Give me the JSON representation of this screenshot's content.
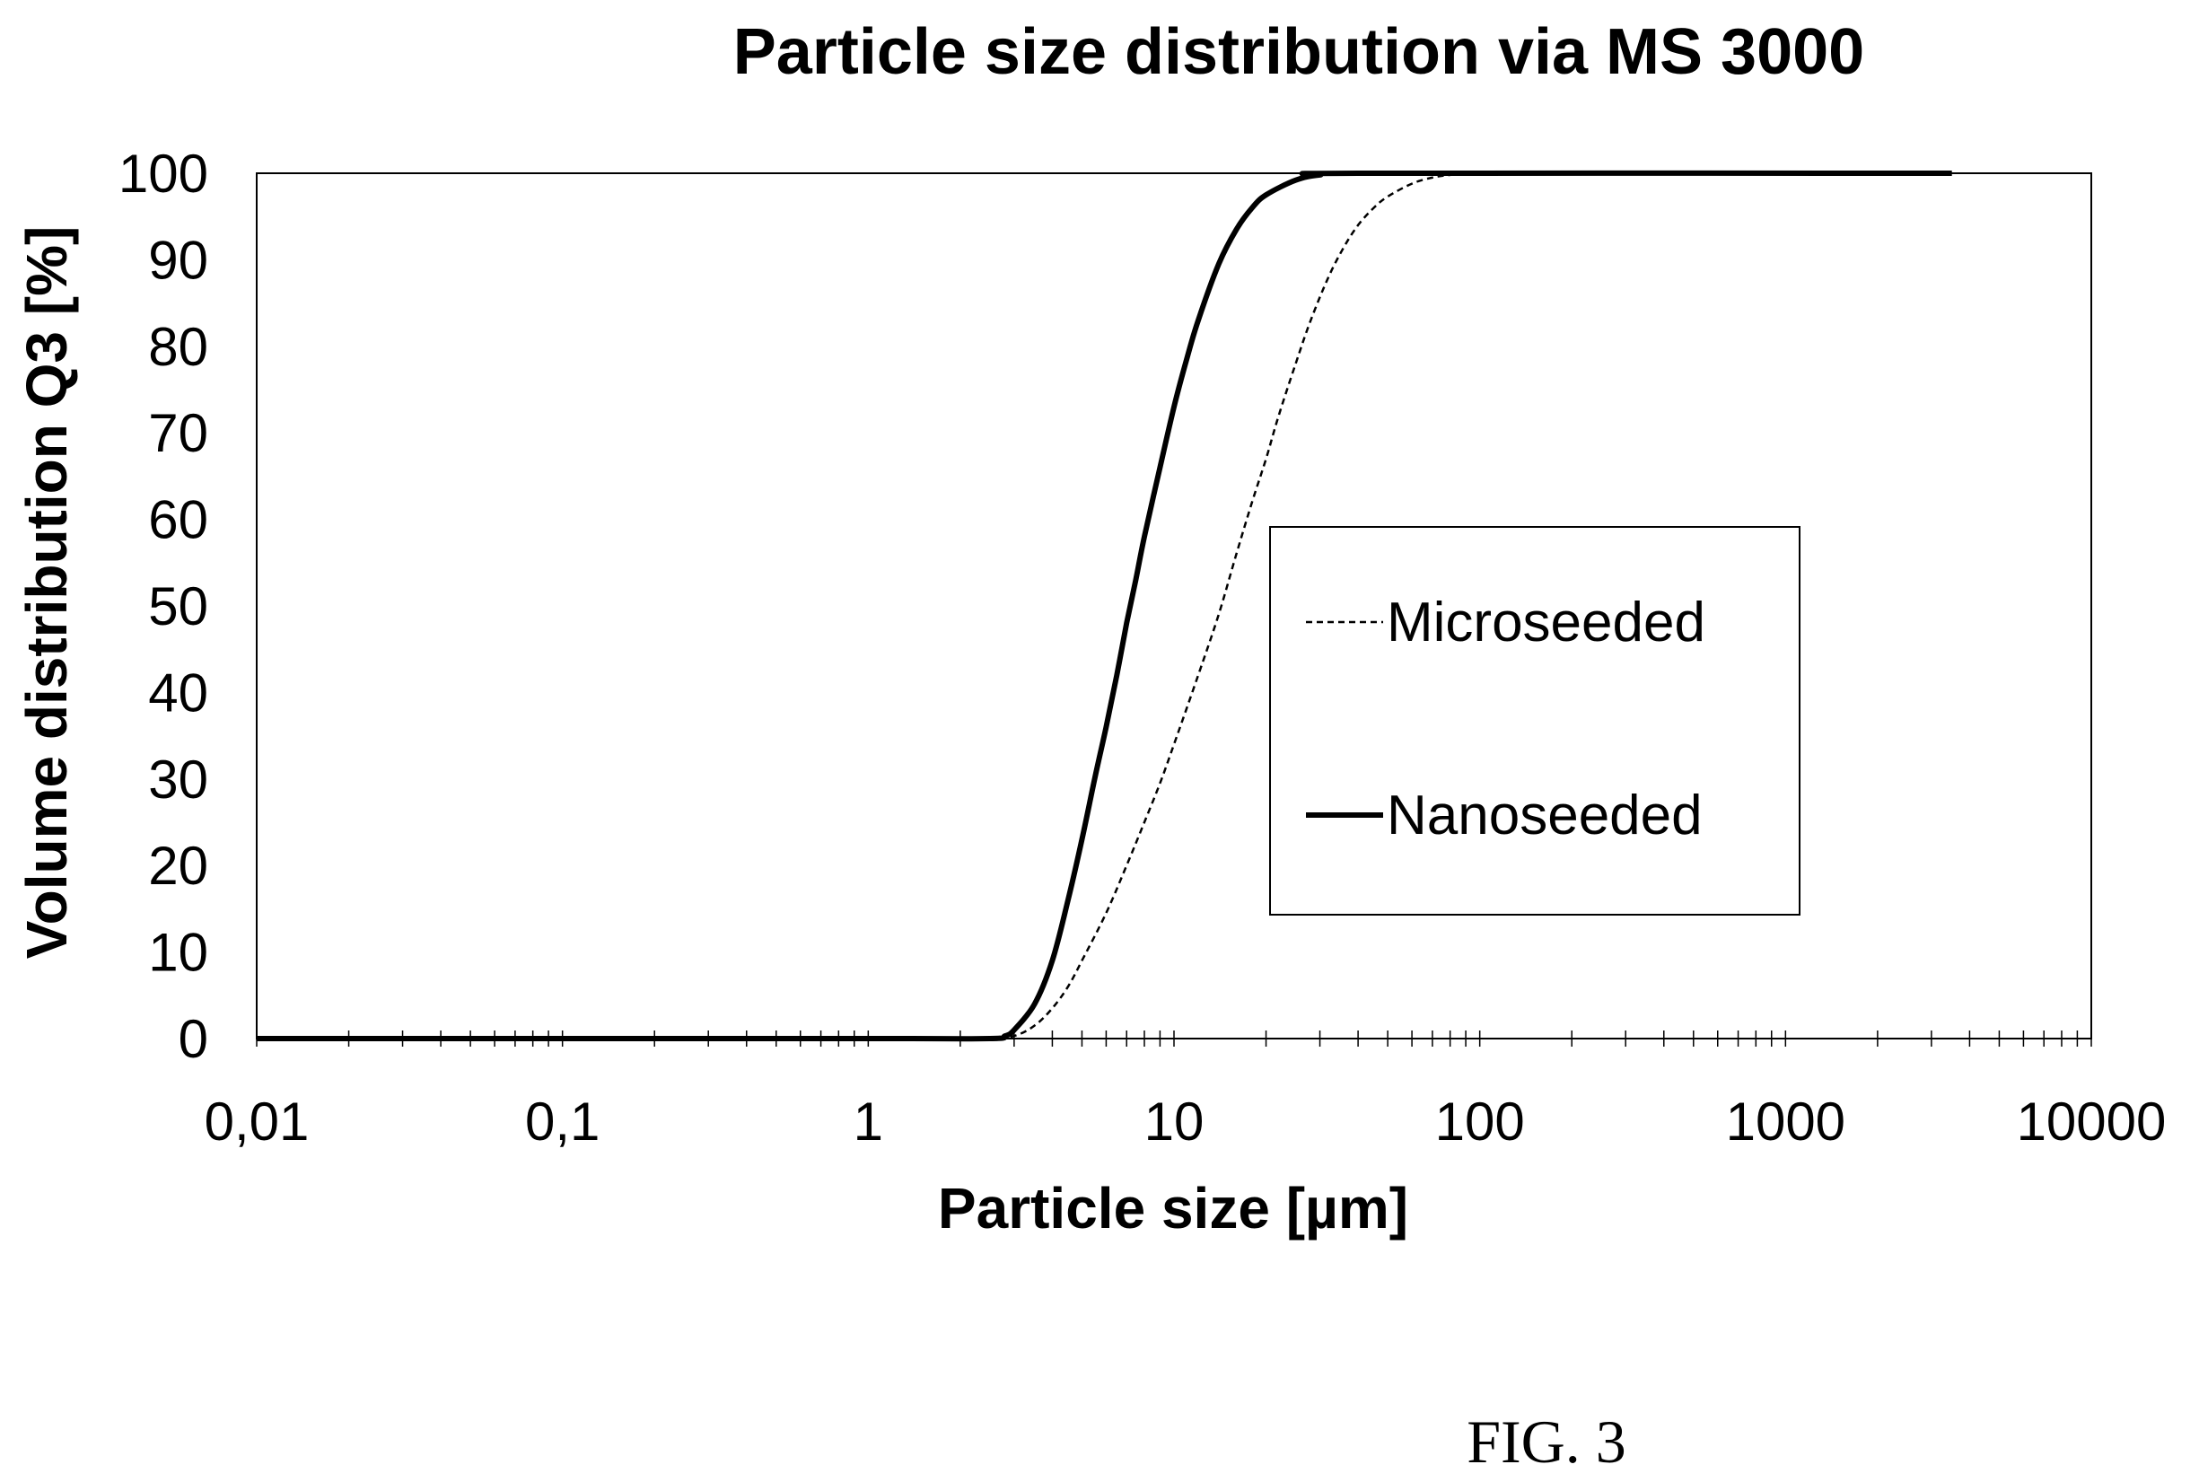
{
  "chart_data": {
    "type": "line",
    "title": "Particle size distribution via MS 3000",
    "xlabel": "Particle size [µm]",
    "ylabel": "Volume distribution Q3 [%]",
    "x_scale": "log",
    "xlim": [
      0.01,
      10000
    ],
    "ylim": [
      0,
      100
    ],
    "x_ticks": [
      0.01,
      0.1,
      1,
      10,
      100,
      1000,
      10000
    ],
    "x_tick_labels": [
      "0,01",
      "0,1",
      "1",
      "10",
      "100",
      "1000",
      "10000"
    ],
    "y_ticks": [
      0,
      10,
      20,
      30,
      40,
      50,
      60,
      70,
      80,
      90,
      100
    ],
    "y_tick_labels": [
      "0",
      "10",
      "20",
      "30",
      "40",
      "50",
      "60",
      "70",
      "80",
      "90",
      "100"
    ],
    "grid": false,
    "legend_position": "right-center",
    "series": [
      {
        "name": "Microseeded",
        "style": "dashed",
        "color": "#000000",
        "points": [
          [
            0.01,
            0
          ],
          [
            1,
            0
          ],
          [
            2.5,
            0
          ],
          [
            3,
            0.3
          ],
          [
            3.5,
            1.5
          ],
          [
            4,
            3.5
          ],
          [
            4.5,
            6
          ],
          [
            5,
            9
          ],
          [
            6,
            14.5
          ],
          [
            7,
            20
          ],
          [
            8,
            25
          ],
          [
            9,
            29.5
          ],
          [
            10,
            34
          ],
          [
            12,
            42
          ],
          [
            14,
            49
          ],
          [
            16,
            56
          ],
          [
            18,
            62
          ],
          [
            20,
            67
          ],
          [
            22,
            72
          ],
          [
            25,
            78
          ],
          [
            28,
            83
          ],
          [
            32,
            88
          ],
          [
            36,
            91.5
          ],
          [
            40,
            94
          ],
          [
            45,
            96
          ],
          [
            50,
            97.3
          ],
          [
            60,
            98.8
          ],
          [
            70,
            99.5
          ],
          [
            80,
            99.8
          ],
          [
            100,
            100
          ],
          [
            3500,
            100
          ]
        ]
      },
      {
        "name": "Nanoseeded",
        "style": "solid",
        "color": "#000000",
        "points": [
          [
            0.01,
            0
          ],
          [
            1,
            0
          ],
          [
            2.5,
            0
          ],
          [
            2.8,
            0.3
          ],
          [
            3,
            1
          ],
          [
            3.5,
            4
          ],
          [
            4,
            9
          ],
          [
            4.5,
            16
          ],
          [
            5,
            23
          ],
          [
            5.5,
            30
          ],
          [
            6,
            36
          ],
          [
            6.5,
            42
          ],
          [
            7,
            48
          ],
          [
            7.5,
            53
          ],
          [
            8,
            58
          ],
          [
            9,
            66
          ],
          [
            10,
            73
          ],
          [
            11,
            78.5
          ],
          [
            12,
            83
          ],
          [
            14,
            89.5
          ],
          [
            16,
            93.5
          ],
          [
            18,
            96
          ],
          [
            20,
            97.5
          ],
          [
            25,
            99.2
          ],
          [
            30,
            99.8
          ],
          [
            40,
            100
          ],
          [
            3500,
            100
          ]
        ]
      }
    ]
  },
  "figure_label": "FIG. 3"
}
